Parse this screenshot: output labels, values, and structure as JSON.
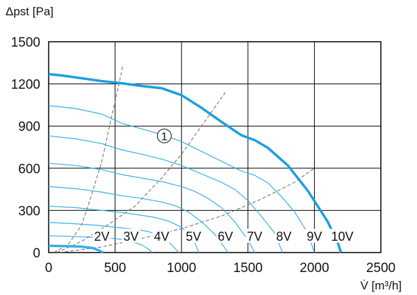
{
  "chart_data": {
    "type": "line",
    "title": "",
    "ylabel": "Δpst [Pa]",
    "xlabel": "V̇ [m³/h]",
    "xlim": [
      0,
      2500
    ],
    "ylim": [
      0,
      1500
    ],
    "xticks": [
      "0",
      "500",
      "1000",
      "1500",
      "2000",
      "2500"
    ],
    "yticks": [
      "0",
      "300",
      "600",
      "900",
      "1200",
      "1500"
    ],
    "grid": true,
    "colors": {
      "main": "#1a9fe0",
      "sub": "#38aee8",
      "dashed": "#666666",
      "grid": "#000000"
    },
    "max_curve": {
      "label": "10V",
      "marker": "①",
      "points": [
        [
          0,
          1270
        ],
        [
          100,
          1260
        ],
        [
          250,
          1240
        ],
        [
          400,
          1220
        ],
        [
          550,
          1205
        ],
        [
          700,
          1185
        ],
        [
          850,
          1170
        ],
        [
          1000,
          1120
        ],
        [
          1150,
          1030
        ],
        [
          1300,
          930
        ],
        [
          1450,
          835
        ],
        [
          1550,
          800
        ],
        [
          1650,
          745
        ],
        [
          1800,
          620
        ],
        [
          1950,
          440
        ],
        [
          2100,
          220
        ],
        [
          2180,
          60
        ],
        [
          2200,
          0
        ]
      ]
    },
    "speed_curves": [
      {
        "label": "9V",
        "points": [
          [
            0,
            1045
          ],
          [
            200,
            1025
          ],
          [
            400,
            985
          ],
          [
            550,
            920
          ],
          [
            700,
            880
          ],
          [
            850,
            840
          ],
          [
            1000,
            790
          ],
          [
            1150,
            720
          ],
          [
            1300,
            650
          ],
          [
            1450,
            580
          ],
          [
            1550,
            550
          ],
          [
            1650,
            495
          ],
          [
            1750,
            400
          ],
          [
            1850,
            290
          ],
          [
            1950,
            140
          ],
          [
            2000,
            0
          ]
        ]
      },
      {
        "label": "8V",
        "points": [
          [
            0,
            830
          ],
          [
            200,
            810
          ],
          [
            400,
            775
          ],
          [
            550,
            730
          ],
          [
            700,
            700
          ],
          [
            850,
            665
          ],
          [
            1000,
            620
          ],
          [
            1150,
            560
          ],
          [
            1300,
            500
          ],
          [
            1400,
            450
          ],
          [
            1500,
            370
          ],
          [
            1600,
            260
          ],
          [
            1700,
            140
          ],
          [
            1760,
            0
          ]
        ]
      },
      {
        "label": "7V",
        "points": [
          [
            0,
            635
          ],
          [
            200,
            620
          ],
          [
            400,
            590
          ],
          [
            550,
            555
          ],
          [
            700,
            530
          ],
          [
            850,
            505
          ],
          [
            1000,
            470
          ],
          [
            1100,
            435
          ],
          [
            1200,
            385
          ],
          [
            1300,
            320
          ],
          [
            1400,
            220
          ],
          [
            1500,
            90
          ],
          [
            1550,
            0
          ]
        ]
      },
      {
        "label": "6V",
        "points": [
          [
            0,
            470
          ],
          [
            200,
            455
          ],
          [
            400,
            430
          ],
          [
            550,
            405
          ],
          [
            700,
            385
          ],
          [
            850,
            360
          ],
          [
            950,
            335
          ],
          [
            1050,
            290
          ],
          [
            1150,
            220
          ],
          [
            1250,
            130
          ],
          [
            1320,
            40
          ],
          [
            1350,
            0
          ]
        ]
      },
      {
        "label": "5V",
        "points": [
          [
            0,
            330
          ],
          [
            200,
            320
          ],
          [
            400,
            300
          ],
          [
            550,
            285
          ],
          [
            700,
            265
          ],
          [
            800,
            250
          ],
          [
            900,
            225
          ],
          [
            1000,
            180
          ],
          [
            1050,
            140
          ],
          [
            1100,
            70
          ],
          [
            1130,
            0
          ]
        ]
      },
      {
        "label": "4V",
        "points": [
          [
            0,
            215
          ],
          [
            200,
            205
          ],
          [
            350,
            195
          ],
          [
            500,
            180
          ],
          [
            650,
            165
          ],
          [
            750,
            150
          ],
          [
            850,
            115
          ],
          [
            900,
            80
          ],
          [
            950,
            30
          ],
          [
            980,
            0
          ]
        ]
      },
      {
        "label": "3V",
        "points": [
          [
            0,
            120
          ],
          [
            200,
            115
          ],
          [
            350,
            108
          ],
          [
            500,
            100
          ],
          [
            600,
            85
          ],
          [
            700,
            55
          ],
          [
            750,
            25
          ],
          [
            780,
            0
          ]
        ]
      },
      {
        "label": "2V",
        "points": [
          [
            0,
            48
          ],
          [
            150,
            45
          ],
          [
            250,
            42
          ],
          [
            330,
            32
          ],
          [
            380,
            15
          ],
          [
            410,
            0
          ]
        ]
      }
    ],
    "dashed_lines": [
      {
        "points": [
          [
            40,
            0
          ],
          [
            150,
            60
          ],
          [
            250,
            200
          ],
          [
            320,
            400
          ],
          [
            400,
            650
          ],
          [
            470,
            950
          ],
          [
            530,
            1200
          ],
          [
            560,
            1340
          ]
        ]
      },
      {
        "points": [
          [
            60,
            0
          ],
          [
            250,
            80
          ],
          [
            450,
            200
          ],
          [
            650,
            330
          ],
          [
            850,
            530
          ],
          [
            1000,
            700
          ],
          [
            1150,
            900
          ],
          [
            1330,
            1140
          ]
        ]
      },
      {
        "points": [
          [
            80,
            0
          ],
          [
            400,
            40
          ],
          [
            700,
            100
          ],
          [
            1000,
            170
          ],
          [
            1300,
            260
          ],
          [
            1600,
            380
          ],
          [
            1850,
            500
          ],
          [
            2000,
            600
          ]
        ]
      }
    ],
    "speed_labels": [
      {
        "text": "2V",
        "x": 400,
        "y": 80
      },
      {
        "text": "3V",
        "x": 620,
        "y": 80
      },
      {
        "text": "4V",
        "x": 850,
        "y": 80
      },
      {
        "text": "5V",
        "x": 1090,
        "y": 80
      },
      {
        "text": "6V",
        "x": 1330,
        "y": 80
      },
      {
        "text": "7V",
        "x": 1550,
        "y": 80
      },
      {
        "text": "8V",
        "x": 1770,
        "y": 80
      },
      {
        "text": "9V",
        "x": 2000,
        "y": 80
      },
      {
        "text": "10V",
        "x": 2210,
        "y": 80
      }
    ],
    "marker_position": {
      "x": 870,
      "y": 830
    }
  }
}
